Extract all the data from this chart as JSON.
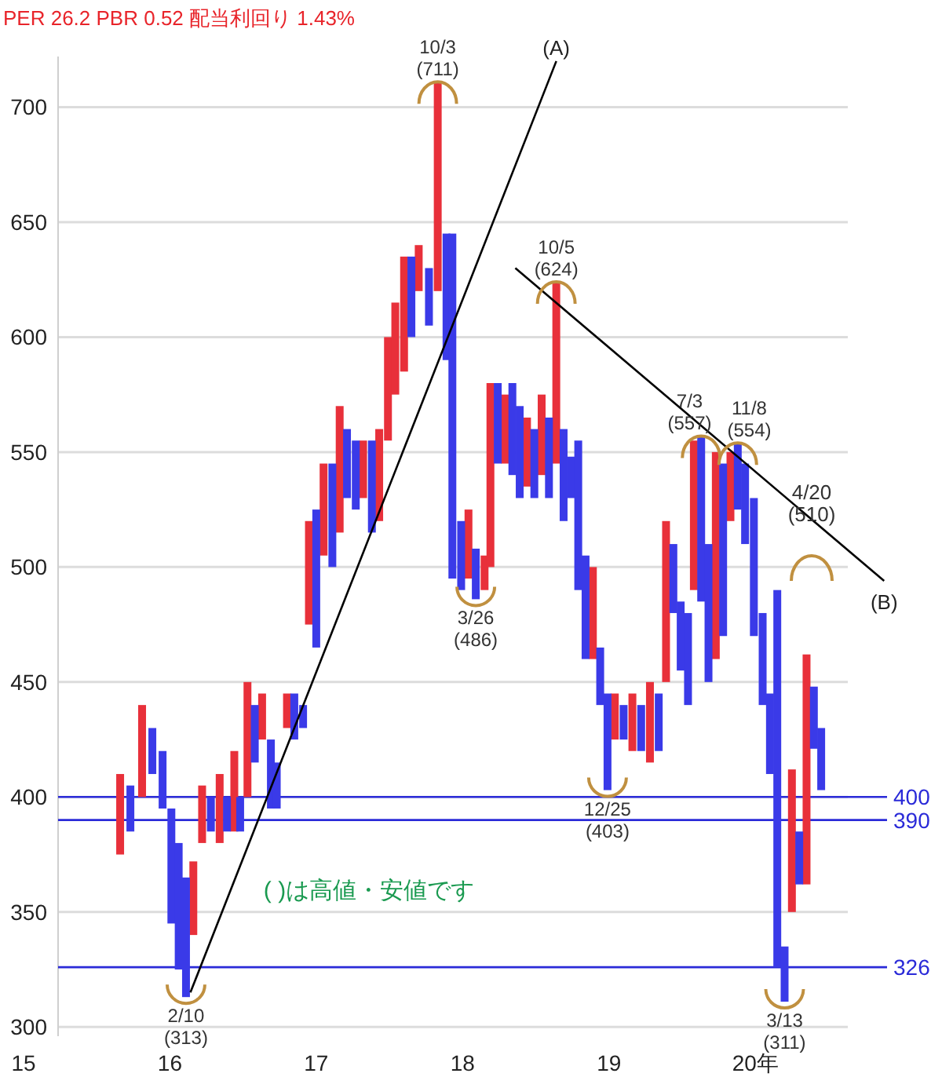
{
  "chart_data": {
    "type": "candlestick",
    "title": "PER 26.2 PBR 0.52 配当利回り 1.43%",
    "xlim": [
      15,
      20.9
    ],
    "ylim": [
      296,
      722
    ],
    "xticks": [
      {
        "value": 15,
        "label": "15"
      },
      {
        "value": 16,
        "label": "16"
      },
      {
        "value": 17,
        "label": "17"
      },
      {
        "value": 18,
        "label": "18"
      },
      {
        "value": 19,
        "label": "19"
      },
      {
        "value": 20,
        "label": "20年"
      }
    ],
    "yticks": [
      300,
      350,
      400,
      450,
      500,
      550,
      600,
      650,
      700
    ],
    "grid": "y",
    "series": [
      {
        "color": "#e8303a",
        "x": [
          15.66,
          15.81,
          16.16,
          16.22,
          16.34,
          16.44,
          16.53,
          16.63,
          16.8,
          16.95,
          17.05,
          17.16,
          17.32,
          17.43,
          17.49,
          17.54,
          17.6,
          17.7,
          17.83,
          18.04,
          18.15,
          18.19,
          18.29,
          18.44,
          18.54,
          18.64,
          18.89,
          19.04,
          19.16,
          19.28,
          19.39,
          19.58,
          19.73,
          19.83,
          20.25,
          20.35
        ],
        "ohlc": [
          [
            375,
            410,
            375,
            410
          ],
          [
            400,
            440,
            400,
            440
          ],
          [
            340,
            372,
            340,
            372
          ],
          [
            380,
            405,
            380,
            405
          ],
          [
            380,
            410,
            380,
            410
          ],
          [
            385,
            420,
            385,
            420
          ],
          [
            400,
            450,
            400,
            450
          ],
          [
            425,
            445,
            425,
            445
          ],
          [
            430,
            445,
            430,
            445
          ],
          [
            475,
            520,
            475,
            520
          ],
          [
            505,
            545,
            505,
            545
          ],
          [
            515,
            570,
            515,
            570
          ],
          [
            530,
            555,
            530,
            555
          ],
          [
            520,
            560,
            520,
            560
          ],
          [
            555,
            600,
            555,
            600
          ],
          [
            575,
            615,
            575,
            615
          ],
          [
            585,
            635,
            585,
            635
          ],
          [
            620,
            640,
            620,
            640
          ],
          [
            620,
            711,
            620,
            711
          ],
          [
            495,
            525,
            495,
            525
          ],
          [
            490,
            505,
            490,
            505
          ],
          [
            500,
            580,
            500,
            580
          ],
          [
            545,
            575,
            545,
            575
          ],
          [
            535,
            565,
            535,
            565
          ],
          [
            540,
            575,
            540,
            575
          ],
          [
            545,
            624,
            545,
            624
          ],
          [
            460,
            500,
            460,
            500
          ],
          [
            425,
            445,
            425,
            445
          ],
          [
            420,
            445,
            420,
            445
          ],
          [
            415,
            450,
            415,
            450
          ],
          [
            450,
            520,
            450,
            520
          ],
          [
            490,
            555,
            490,
            555
          ],
          [
            460,
            550,
            460,
            550
          ],
          [
            520,
            550,
            520,
            550
          ],
          [
            350,
            412,
            350,
            412
          ],
          [
            362,
            462,
            362,
            462
          ]
        ]
      },
      {
        "color": "#3a3ae8",
        "x": [
          15.73,
          15.88,
          15.95,
          16.01,
          16.06,
          16.11,
          16.28,
          16.39,
          16.48,
          16.58,
          16.69,
          16.73,
          16.85,
          16.91,
          17.0,
          17.11,
          17.21,
          17.27,
          17.38,
          17.65,
          17.77,
          17.89,
          17.93,
          17.99,
          18.09,
          18.24,
          18.34,
          18.39,
          18.49,
          18.59,
          18.69,
          18.74,
          18.79,
          18.84,
          18.94,
          18.99,
          19.1,
          19.22,
          19.34,
          19.44,
          19.49,
          19.54,
          19.63,
          19.68,
          19.78,
          19.88,
          19.93,
          19.99,
          20.05,
          20.1,
          20.15,
          20.2,
          20.3,
          20.4,
          20.45
        ],
        "ohlc": [
          [
            405,
            405,
            385,
            385
          ],
          [
            430,
            430,
            410,
            410
          ],
          [
            420,
            420,
            395,
            395
          ],
          [
            395,
            395,
            345,
            345
          ],
          [
            380,
            380,
            325,
            325
          ],
          [
            365,
            365,
            313,
            313
          ],
          [
            400,
            400,
            385,
            385
          ],
          [
            400,
            400,
            385,
            385
          ],
          [
            400,
            400,
            385,
            385
          ],
          [
            440,
            440,
            415,
            415
          ],
          [
            425,
            425,
            395,
            395
          ],
          [
            415,
            415,
            395,
            395
          ],
          [
            445,
            445,
            425,
            425
          ],
          [
            440,
            440,
            430,
            430
          ],
          [
            525,
            525,
            465,
            465
          ],
          [
            545,
            545,
            500,
            500
          ],
          [
            560,
            560,
            530,
            530
          ],
          [
            555,
            555,
            525,
            525
          ],
          [
            555,
            555,
            515,
            515
          ],
          [
            635,
            635,
            600,
            600
          ],
          [
            630,
            630,
            605,
            605
          ],
          [
            645,
            645,
            590,
            590
          ],
          [
            645,
            645,
            495,
            495
          ],
          [
            520,
            520,
            490,
            490
          ],
          [
            508,
            508,
            486,
            486
          ],
          [
            580,
            580,
            545,
            545
          ],
          [
            580,
            580,
            540,
            540
          ],
          [
            570,
            570,
            530,
            530
          ],
          [
            560,
            560,
            530,
            530
          ],
          [
            565,
            565,
            530,
            530
          ],
          [
            560,
            560,
            520,
            520
          ],
          [
            548,
            548,
            530,
            530
          ],
          [
            555,
            555,
            490,
            490
          ],
          [
            505,
            505,
            460,
            460
          ],
          [
            465,
            465,
            440,
            440
          ],
          [
            445,
            445,
            403,
            403
          ],
          [
            440,
            440,
            425,
            425
          ],
          [
            440,
            440,
            420,
            420
          ],
          [
            445,
            445,
            420,
            420
          ],
          [
            510,
            510,
            480,
            480
          ],
          [
            485,
            485,
            455,
            455
          ],
          [
            480,
            480,
            440,
            440
          ],
          [
            557,
            557,
            485,
            485
          ],
          [
            510,
            510,
            450,
            450
          ],
          [
            545,
            545,
            470,
            470
          ],
          [
            554,
            554,
            525,
            525
          ],
          [
            545,
            545,
            510,
            510
          ],
          [
            530,
            530,
            470,
            470
          ],
          [
            480,
            480,
            440,
            440
          ],
          [
            445,
            445,
            410,
            410
          ],
          [
            490,
            490,
            326,
            326
          ],
          [
            335,
            335,
            311,
            311
          ],
          [
            385,
            385,
            362,
            362
          ],
          [
            448,
            448,
            421,
            421
          ],
          [
            430,
            430,
            403,
            403
          ]
        ]
      },
      {
        "type": "line",
        "name": "(A)",
        "color": "#000000",
        "x": [
          16.14,
          18.64
        ],
        "values": [
          315,
          720
        ]
      },
      {
        "type": "line",
        "name": "(B)",
        "color": "#000000",
        "x": [
          18.36,
          20.88
        ],
        "values": [
          630,
          494
        ]
      }
    ],
    "ref_lines": [
      {
        "axis": "y",
        "value": 400,
        "label": "400",
        "color": "#2a2ad8"
      },
      {
        "axis": "y",
        "value": 390,
        "label": "390",
        "color": "#2a2ad8"
      },
      {
        "axis": "y",
        "value": 326,
        "label": "326",
        "color": "#2a2ad8"
      }
    ],
    "annotations": [
      {
        "text": "10/3 (711)",
        "x": 17.83,
        "y": 711
      },
      {
        "text": "3/26 (486)",
        "x": 18.09,
        "y": 486
      },
      {
        "text": "10/5 (624)",
        "x": 18.64,
        "y": 624
      },
      {
        "text": "12/25 (403)",
        "x": 18.99,
        "y": 403
      },
      {
        "text": "2/10 (313)",
        "x": 16.11,
        "y": 313
      },
      {
        "text": "7/3 (557)",
        "x": 19.63,
        "y": 557
      },
      {
        "text": "11/8 (554)",
        "x": 19.88,
        "y": 554
      },
      {
        "text": "3/13 (311)",
        "x": 20.2,
        "y": 311
      },
      "4/20 (510)",
      "( )は高値・安値です"
    ]
  }
}
